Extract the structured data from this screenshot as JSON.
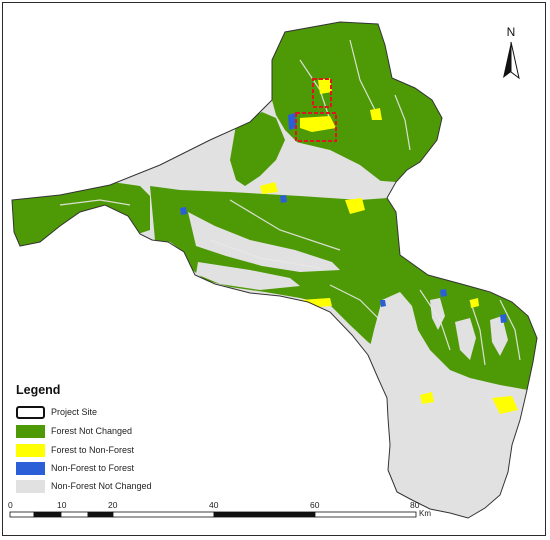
{
  "map": {
    "north_arrow": "N",
    "colors": {
      "forest_not_changed": "#4e9a06",
      "forest_to_non_forest": "#ffff00",
      "non_forest_to_forest": "#2a5fd8",
      "non_forest_not_changed": "#e1e1e1",
      "project_site": "#e0161e"
    }
  },
  "legend": {
    "title": "Legend",
    "items": [
      {
        "label": "Project Site",
        "swatch": "outline"
      },
      {
        "label": "Forest Not Changed",
        "swatch": "#4e9a06"
      },
      {
        "label": "Forest to Non-Forest",
        "swatch": "#ffff00"
      },
      {
        "label": "Non-Forest to Forest",
        "swatch": "#2a5fd8"
      },
      {
        "label": "Non-Forest Not Changed",
        "swatch": "#e1e1e1"
      }
    ]
  },
  "scale_bar": {
    "ticks": [
      "0",
      "10",
      "20",
      "40",
      "60",
      "80"
    ],
    "unit": "Km"
  }
}
